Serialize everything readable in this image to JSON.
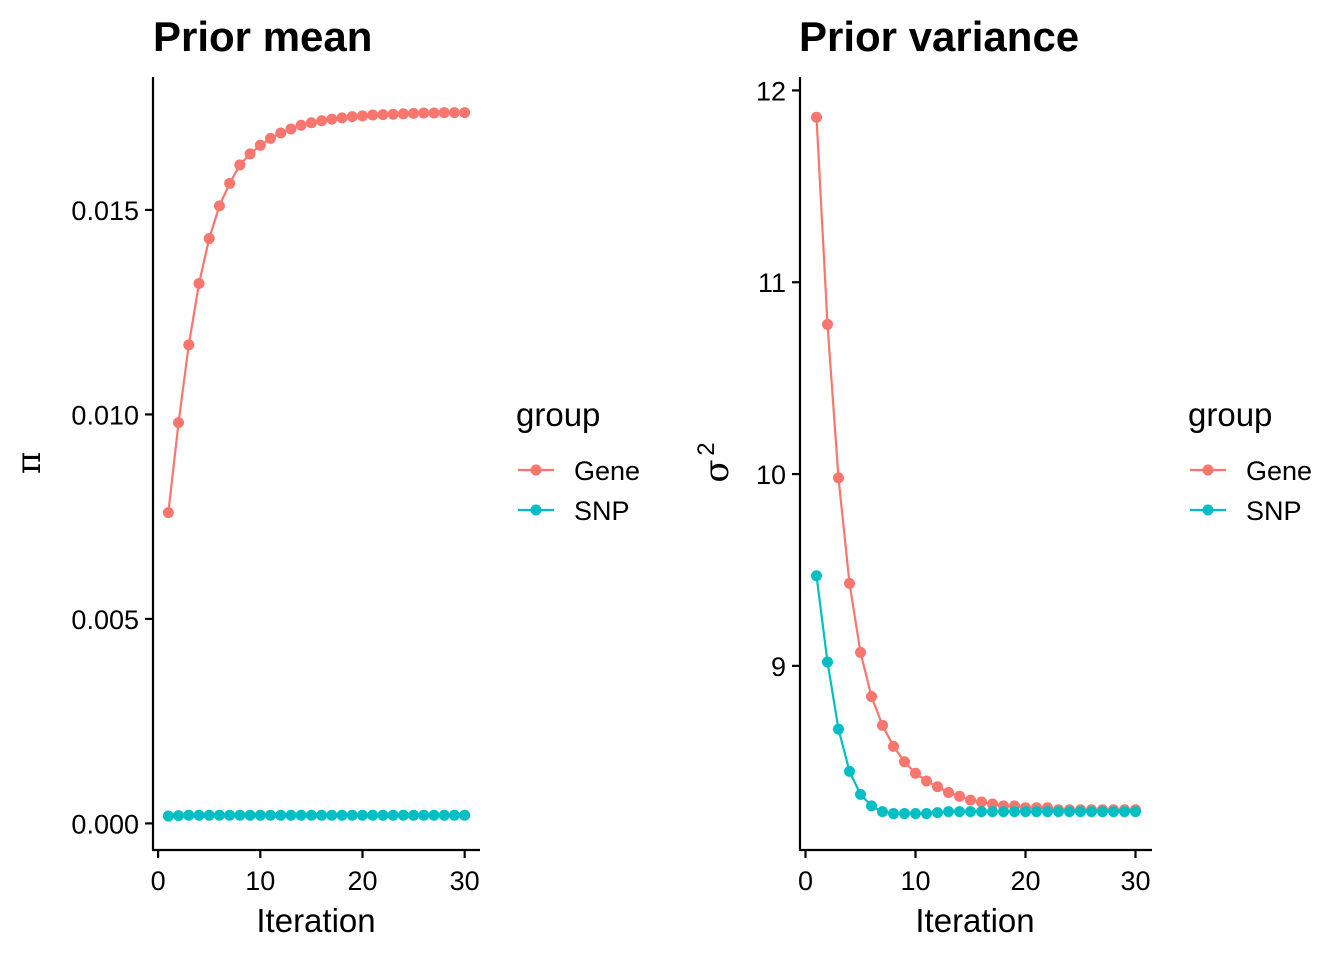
{
  "colors": {
    "Gene": "#F8766D",
    "SNP": "#00BFC4"
  },
  "chart_data": [
    {
      "type": "line",
      "title": "Prior mean",
      "xlabel": "Iteration",
      "ylabel": "π",
      "xlim": [
        -0.5,
        31.5
      ],
      "ylim": [
        -0.00065,
        0.01825
      ],
      "xticks": [
        0,
        10,
        20,
        30
      ],
      "xtick_labels": [
        "0",
        "10",
        "20",
        "30"
      ],
      "yticks": [
        0,
        0.005,
        0.01,
        0.015
      ],
      "ytick_labels": [
        "0.000",
        "0.005",
        "0.010",
        "0.015"
      ],
      "legend": {
        "title": "group",
        "entries": [
          "Gene",
          "SNP"
        ]
      },
      "x": [
        1,
        2,
        3,
        4,
        5,
        6,
        7,
        8,
        9,
        10,
        11,
        12,
        13,
        14,
        15,
        16,
        17,
        18,
        19,
        20,
        21,
        22,
        23,
        24,
        25,
        26,
        27,
        28,
        29,
        30
      ],
      "series": [
        {
          "name": "Gene",
          "values": [
            0.0076,
            0.0098,
            0.0117,
            0.0132,
            0.0143,
            0.0151,
            0.01565,
            0.0161,
            0.01637,
            0.01658,
            0.01675,
            0.01688,
            0.01698,
            0.01707,
            0.01713,
            0.01718,
            0.01722,
            0.01725,
            0.01728,
            0.0173,
            0.01732,
            0.01733,
            0.01734,
            0.01735,
            0.01736,
            0.01737,
            0.01737,
            0.01738,
            0.01738,
            0.01738
          ]
        },
        {
          "name": "SNP",
          "values": [
            0.00018,
            0.00019,
            0.0002,
            0.0002,
            0.0002,
            0.0002,
            0.0002,
            0.0002,
            0.0002,
            0.0002,
            0.0002,
            0.0002,
            0.0002,
            0.0002,
            0.0002,
            0.0002,
            0.0002,
            0.0002,
            0.0002,
            0.0002,
            0.0002,
            0.0002,
            0.0002,
            0.0002,
            0.0002,
            0.0002,
            0.0002,
            0.0002,
            0.0002,
            0.0002
          ]
        }
      ]
    },
    {
      "type": "line",
      "title": "Prior variance",
      "xlabel": "Iteration",
      "ylabel": "σ",
      "ylabel_superscript": "2",
      "xlim": [
        -0.5,
        31.5
      ],
      "ylim": [
        8.04,
        12.07
      ],
      "xticks": [
        0,
        10,
        20,
        30
      ],
      "xtick_labels": [
        "0",
        "10",
        "20",
        "30"
      ],
      "yticks": [
        9,
        10,
        11,
        12
      ],
      "ytick_labels": [
        "9",
        "10",
        "11",
        "12"
      ],
      "legend": {
        "title": "group",
        "entries": [
          "Gene",
          "SNP"
        ]
      },
      "x": [
        1,
        2,
        3,
        4,
        5,
        6,
        7,
        8,
        9,
        10,
        11,
        12,
        13,
        14,
        15,
        16,
        17,
        18,
        19,
        20,
        21,
        22,
        23,
        24,
        25,
        26,
        27,
        28,
        29,
        30
      ],
      "series": [
        {
          "name": "Gene",
          "values": [
            11.86,
            10.78,
            9.98,
            9.43,
            9.07,
            8.84,
            8.69,
            8.58,
            8.5,
            8.44,
            8.4,
            8.37,
            8.34,
            8.32,
            8.3,
            8.29,
            8.28,
            8.27,
            8.27,
            8.26,
            8.26,
            8.26,
            8.25,
            8.25,
            8.25,
            8.25,
            8.25,
            8.25,
            8.25,
            8.25
          ]
        },
        {
          "name": "SNP",
          "values": [
            9.47,
            9.02,
            8.67,
            8.45,
            8.33,
            8.27,
            8.24,
            8.23,
            8.23,
            8.23,
            8.23,
            8.235,
            8.24,
            8.24,
            8.24,
            8.24,
            8.24,
            8.24,
            8.24,
            8.24,
            8.24,
            8.24,
            8.24,
            8.24,
            8.24,
            8.24,
            8.24,
            8.24,
            8.24,
            8.24
          ]
        }
      ]
    }
  ]
}
